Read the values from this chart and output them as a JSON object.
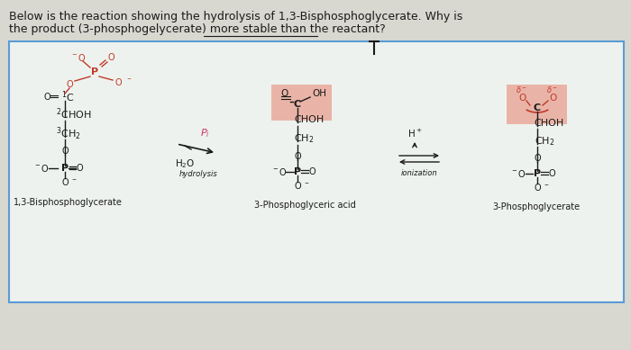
{
  "title_line1": "Below is the reaction showing the hydrolysis of 1,3-Bisphosphoglycerate. Why is",
  "title_line2": "the product (3-phosphogelycerate) more stable than the reactant?",
  "bg_color": "#d8d8d0",
  "box_bg": "#eef2ee",
  "box_border": "#5b9bd5",
  "salmon_bg": "#e8a090",
  "text_black": "#1a1a1a",
  "text_red": "#c0392b",
  "text_pink": "#cc3366",
  "label1": "1,3-Bisphosphoglycerate",
  "label2": "3-Phosphoglyceric acid",
  "label3": "3-Phosphoglycerate",
  "fig_width": 7.0,
  "fig_height": 3.89
}
